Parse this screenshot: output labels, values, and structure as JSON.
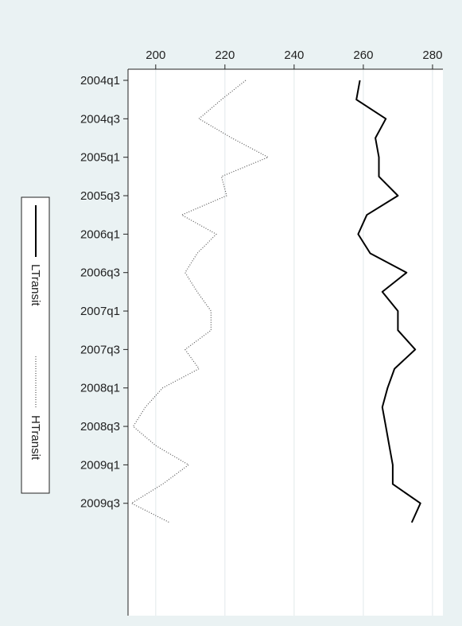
{
  "chart_data": {
    "type": "line",
    "orientation": "vertical-time-axis",
    "title": "",
    "xlabel": "",
    "ylabel": "",
    "value_axis": {
      "range": [
        192,
        283
      ],
      "ticks": [
        200,
        220,
        240,
        260,
        280
      ],
      "position": "top"
    },
    "time_axis_labels": [
      "2004q1",
      "2004q3",
      "2005q1",
      "2005q3",
      "2006q1",
      "2006q3",
      "2007q1",
      "2007q3",
      "2008q1",
      "2008q3",
      "2009q1",
      "2009q3"
    ],
    "periods": [
      "2004q1",
      "2004q2",
      "2004q3",
      "2004q4",
      "2005q1",
      "2005q2",
      "2005q3",
      "2005q4",
      "2006q1",
      "2006q2",
      "2006q3",
      "2006q4",
      "2007q1",
      "2007q2",
      "2007q3",
      "2007q4",
      "2008q1",
      "2008q2",
      "2008q3",
      "2008q4",
      "2009q1",
      "2009q2",
      "2009q3",
      "2009q4"
    ],
    "grid": true,
    "legend": {
      "position": "left",
      "orientation": "rotated"
    },
    "series": [
      {
        "name": "LTransit",
        "style": "solid",
        "color": "#000000",
        "values": [
          259,
          258,
          266.5,
          263.5,
          264.5,
          264.5,
          270,
          261,
          258.5,
          262,
          272.5,
          265.5,
          270,
          270,
          275,
          269,
          267,
          265.5,
          266.5,
          267.5,
          268.5,
          268.5,
          276.5,
          274
        ]
      },
      {
        "name": "HTransit",
        "style": "dotted",
        "color": "#555555",
        "values": [
          226,
          219,
          212.5,
          222,
          232.5,
          219,
          220.5,
          207.5,
          217.5,
          212,
          208.5,
          212,
          216,
          216,
          208.5,
          212.5,
          202,
          197,
          193.5,
          200,
          209.5,
          202,
          193,
          204
        ]
      }
    ]
  }
}
